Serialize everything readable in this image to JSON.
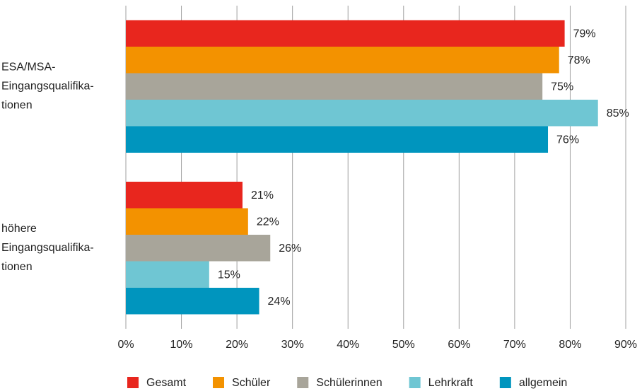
{
  "chart_data": {
    "type": "bar",
    "orientation": "horizontal",
    "categories": [
      [
        "ESA/MSA-",
        "Eingangsqualifika-",
        "tionen"
      ],
      [
        "höhere",
        "Eingangsqualifika-",
        "tionen"
      ]
    ],
    "series": [
      {
        "name": "Gesamt",
        "color": "#e8261e",
        "values": [
          79,
          21
        ],
        "value_labels": [
          "79%",
          "21%"
        ]
      },
      {
        "name": "Schüler",
        "color": "#f39200",
        "values": [
          78,
          22
        ],
        "value_labels": [
          "78%",
          "22%"
        ]
      },
      {
        "name": "Schülerinnen",
        "color": "#a8a59a",
        "values": [
          75,
          26
        ],
        "value_labels": [
          "75%",
          "26%"
        ]
      },
      {
        "name": "Lehrkraft",
        "color": "#6fc6d3",
        "values": [
          85,
          15
        ],
        "value_labels": [
          "85%",
          "15%"
        ]
      },
      {
        "name": "allgemein",
        "color": "#0095be",
        "values": [
          76,
          24
        ],
        "value_labels": [
          "76%",
          "24%"
        ]
      }
    ],
    "xlim": [
      0,
      90
    ],
    "xticks": [
      {
        "value": 0,
        "label": "0%"
      },
      {
        "value": 10,
        "label": "10%"
      },
      {
        "value": 20,
        "label": "20%"
      },
      {
        "value": 30,
        "label": "30%"
      },
      {
        "value": 40,
        "label": "40%"
      },
      {
        "value": 50,
        "label": "50%"
      },
      {
        "value": 60,
        "label": "60%"
      },
      {
        "value": 70,
        "label": "70%"
      },
      {
        "value": 80,
        "label": "80%"
      },
      {
        "value": 90,
        "label": "90%"
      }
    ],
    "grid": true,
    "legend": "bottom"
  }
}
